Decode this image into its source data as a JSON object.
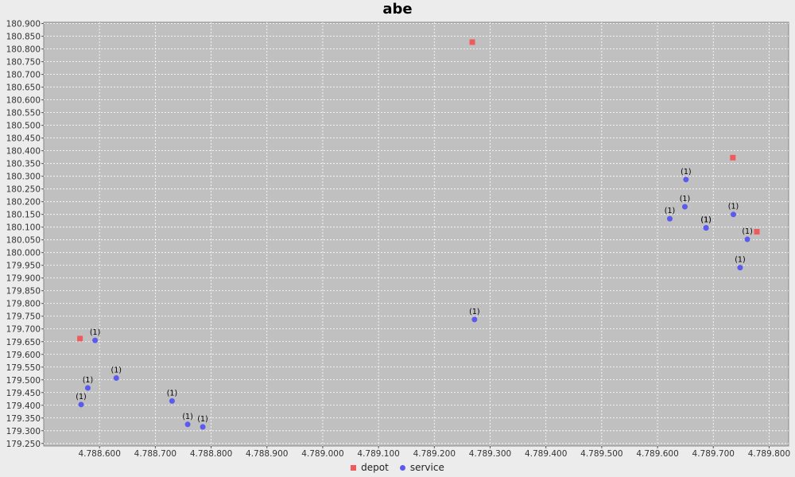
{
  "chart_data": {
    "type": "scatter",
    "title": "abe",
    "xlabel": "",
    "ylabel": "",
    "xlim": [
      4788500,
      4789835
    ],
    "ylim": [
      179240,
      180905
    ],
    "x_ticks": [
      4788600,
      4788700,
      4788800,
      4788900,
      4789000,
      4789100,
      4789200,
      4789300,
      4789400,
      4789500,
      4789600,
      4789700,
      4789800
    ],
    "x_tick_labels": [
      "4.788.600",
      "4.788.700",
      "4.788.800",
      "4.788.900",
      "4.789.000",
      "4.789.100",
      "4.789.200",
      "4.789.300",
      "4.789.400",
      "4.789.500",
      "4.789.600",
      "4.789.700",
      "4.789.800"
    ],
    "y_ticks": [
      179250,
      179300,
      179350,
      179400,
      179450,
      179500,
      179550,
      179600,
      179650,
      179700,
      179750,
      179800,
      179850,
      179900,
      179950,
      180000,
      180050,
      180100,
      180150,
      180200,
      180250,
      180300,
      180350,
      180400,
      180450,
      180500,
      180550,
      180600,
      180650,
      180700,
      180750,
      180800,
      180850,
      180900
    ],
    "y_tick_labels": [
      "179.250",
      "179.300",
      "179.350",
      "179.400",
      "179.450",
      "179.500",
      "179.550",
      "179.600",
      "179.650",
      "179.700",
      "179.750",
      "179.800",
      "179.850",
      "179.900",
      "179.950",
      "180.000",
      "180.050",
      "180.100",
      "180.150",
      "180.200",
      "180.250",
      "180.300",
      "180.350",
      "180.400",
      "180.450",
      "180.500",
      "180.550",
      "180.600",
      "180.650",
      "180.700",
      "180.750",
      "180.800",
      "180.850",
      "180.900"
    ],
    "grid": true,
    "legend_position": "bottom",
    "series": [
      {
        "name": "depot",
        "color": "#f05a5a",
        "marker": "square",
        "points": [
          {
            "x": 4788565,
            "y": 179662
          },
          {
            "x": 4789268,
            "y": 180827
          },
          {
            "x": 4789735,
            "y": 180373
          },
          {
            "x": 4789778,
            "y": 180082
          }
        ]
      },
      {
        "name": "service",
        "color": "#5a5af0",
        "marker": "circle",
        "points": [
          {
            "x": 4788592,
            "y": 179655,
            "label": "(1)"
          },
          {
            "x": 4788579,
            "y": 179468,
            "label": "(1)"
          },
          {
            "x": 4788630,
            "y": 179507,
            "label": "(1)"
          },
          {
            "x": 4788567,
            "y": 179403,
            "label": "(1)"
          },
          {
            "x": 4788730,
            "y": 179417,
            "label": "(1)"
          },
          {
            "x": 4788758,
            "y": 179325,
            "label": "(1)"
          },
          {
            "x": 4788785,
            "y": 179315,
            "label": "(1)"
          },
          {
            "x": 4789272,
            "y": 179737,
            "label": "(1)"
          },
          {
            "x": 4789622,
            "y": 180133,
            "label": "(1)"
          },
          {
            "x": 4789651,
            "y": 180287,
            "label": "(1)"
          },
          {
            "x": 4789649,
            "y": 180180,
            "label": "(1)"
          },
          {
            "x": 4789687,
            "y": 180097,
            "label": "(1)"
          },
          {
            "x": 4789687,
            "y": 180097,
            "label": "(1)"
          },
          {
            "x": 4789736,
            "y": 180150,
            "label": "(1)"
          },
          {
            "x": 4789761,
            "y": 180052,
            "label": "(1)"
          },
          {
            "x": 4789748,
            "y": 179941,
            "label": "(1)"
          }
        ]
      }
    ]
  }
}
